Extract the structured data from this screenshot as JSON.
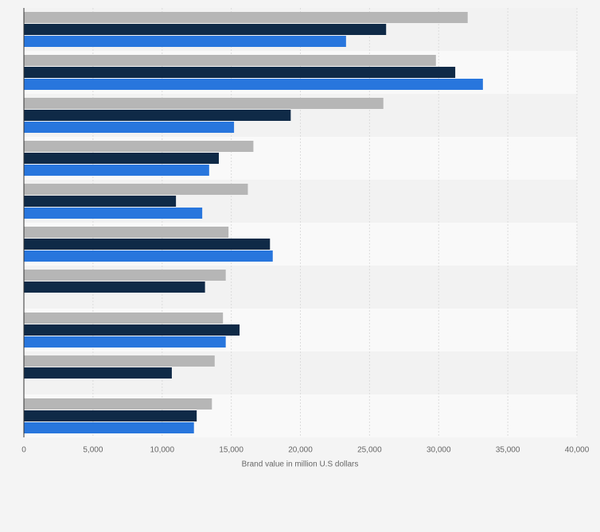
{
  "chart_data": {
    "type": "hbar",
    "xlabel": "Brand value in million U.S dollars",
    "categories": [
      null,
      null,
      null,
      null,
      null,
      null,
      null,
      null,
      null,
      null
    ],
    "series": [
      {
        "color": "#b6b6b6",
        "values": [
          32100,
          29800,
          26000,
          16600,
          16200,
          14800,
          14600,
          14400,
          13800,
          13600
        ]
      },
      {
        "color": "#0f2a47",
        "values": [
          26200,
          31200,
          19300,
          14100,
          11000,
          17800,
          13100,
          15600,
          10700,
          12500
        ]
      },
      {
        "color": "#2876dd",
        "values": [
          23300,
          33200,
          15200,
          13400,
          12900,
          18000,
          null,
          14600,
          null,
          12300
        ]
      }
    ],
    "xlim": [
      0,
      40000
    ],
    "xticks": [
      0,
      {
        "value": 5000,
        "label": "5,000"
      },
      {
        "value": 10000,
        "label": "10,000"
      },
      {
        "value": 15000,
        "label": "15,000"
      },
      {
        "value": 20000,
        "label": "20,000"
      },
      {
        "value": 25000,
        "label": "25,000"
      },
      {
        "value": 30000,
        "label": "30,000"
      },
      {
        "value": 35000,
        "label": "35,000"
      },
      {
        "value": 40000,
        "label": "40,000"
      }
    ],
    "grid": true
  }
}
